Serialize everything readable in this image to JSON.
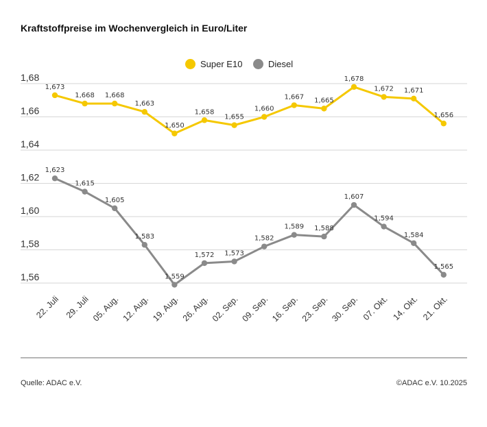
{
  "title": "Kraftstoffpreise im Wochenvergleich in Euro/Liter",
  "source": "Quelle: ADAC e.V.",
  "copyright": "©ADAC e.V. 10.2025",
  "colors": {
    "super": "#f5c800",
    "diesel": "#8a8a8a",
    "grid": "#d6d6d6",
    "axis_text": "#333333"
  },
  "chart_data": {
    "type": "line",
    "title": "Kraftstoffpreise im Wochenvergleich in Euro/Liter",
    "xlabel": "",
    "ylabel": "",
    "categories": [
      "22. Juli",
      "29. Juli",
      "05. Aug.",
      "12. Aug.",
      "19. Aug.",
      "26. Aug.",
      "02. Sep.",
      "09. Sep.",
      "16. Sep.",
      "23. Sep.",
      "30. Sep.",
      "07. Okt.",
      "14. Okt.",
      "21. Okt."
    ],
    "y_ticks": [
      1.56,
      1.58,
      1.6,
      1.62,
      1.64,
      1.66,
      1.68
    ],
    "y_tick_labels": [
      "1,56",
      "1,58",
      "1,60",
      "1,62",
      "1,64",
      "1,66",
      "1,68"
    ],
    "ylim": [
      1.555,
      1.685
    ],
    "grid": true,
    "legend_position": "top-center",
    "series": [
      {
        "name": "Super E10",
        "color": "#f5c800",
        "values": [
          1.673,
          1.668,
          1.668,
          1.663,
          1.65,
          1.658,
          1.655,
          1.66,
          1.667,
          1.665,
          1.678,
          1.672,
          1.671,
          1.656
        ],
        "labels": [
          "1,673",
          "1,668",
          "1,668",
          "1,663",
          "1,650",
          "1,658",
          "1,655",
          "1,660",
          "1,667",
          "1,665",
          "1,678",
          "1,672",
          "1,671",
          "1,656"
        ]
      },
      {
        "name": "Diesel",
        "color": "#8a8a8a",
        "values": [
          1.623,
          1.615,
          1.605,
          1.583,
          1.559,
          1.572,
          1.573,
          1.582,
          1.589,
          1.588,
          1.607,
          1.594,
          1.584,
          1.565
        ],
        "labels": [
          "1,623",
          "1,615",
          "1,605",
          "1,583",
          "1,559",
          "1,572",
          "1,573",
          "1,582",
          "1,589",
          "1,588",
          "1,607",
          "1,594",
          "1,584",
          "1,565"
        ]
      }
    ]
  }
}
